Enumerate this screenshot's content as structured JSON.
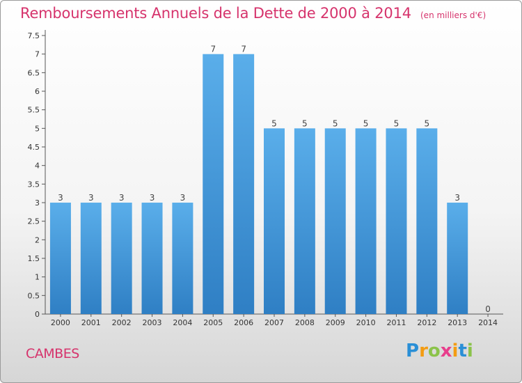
{
  "title": "Remboursements Annuels de la Dette de 2000 à 2014",
  "unit": "(en milliers d'€)",
  "commune": "CAMBES",
  "logo": {
    "text": "Proxiti",
    "letters": [
      "P",
      "r",
      "o",
      "x",
      "i",
      "t",
      "i"
    ],
    "colors": [
      "#2a8fd6",
      "#f39c12",
      "#8bc34a",
      "#e83e8c",
      "#f39c12",
      "#2a8fd6",
      "#8bc34a"
    ]
  },
  "chart_data": {
    "type": "bar",
    "categories": [
      "2000",
      "2001",
      "2002",
      "2003",
      "2004",
      "2005",
      "2006",
      "2007",
      "2008",
      "2009",
      "2010",
      "2011",
      "2012",
      "2013",
      "2014"
    ],
    "values": [
      3,
      3,
      3,
      3,
      3,
      7,
      7,
      5,
      5,
      5,
      5,
      5,
      5,
      3,
      0
    ],
    "ylim": [
      0,
      7.5
    ],
    "yticks": [
      "0",
      "0.5",
      "1",
      "1.5",
      "2",
      "2.5",
      "3",
      "3.5",
      "4",
      "4.5",
      "5",
      "5.5",
      "6",
      "6.5",
      "7",
      "7.5"
    ],
    "grid": false,
    "bar_color": "#4aa3e6",
    "title_color": "#d6336c"
  }
}
